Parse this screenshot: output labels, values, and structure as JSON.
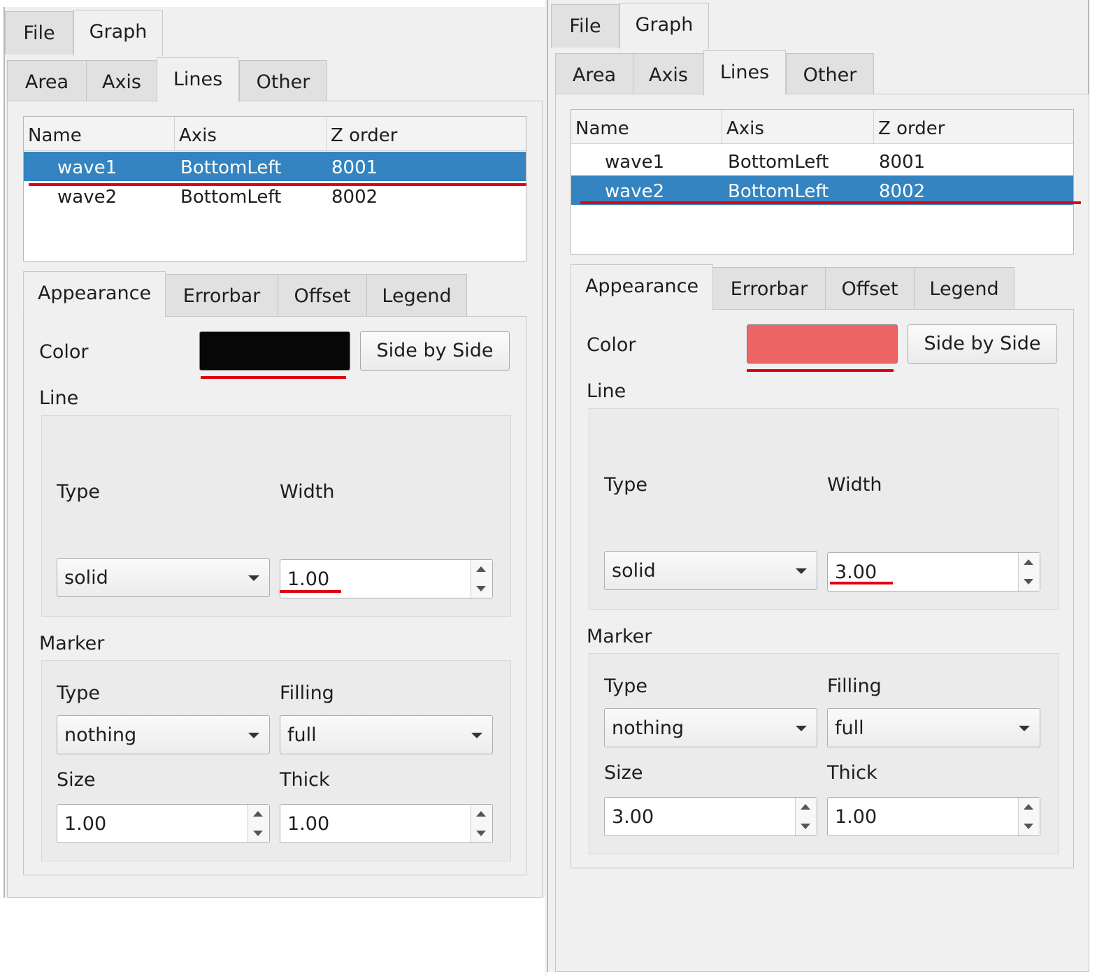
{
  "panels": [
    {
      "main_tabs": [
        "File",
        "Graph"
      ],
      "sub_tabs": [
        "Area",
        "Axis",
        "Lines",
        "Other"
      ],
      "table": {
        "headers": [
          "Name",
          "Axis",
          "Z order"
        ],
        "rows": [
          {
            "name": "wave1",
            "axis": "BottomLeft",
            "z": "8001"
          },
          {
            "name": "wave2",
            "axis": "BottomLeft",
            "z": "8002"
          }
        ],
        "selected_index": 0
      },
      "prop_tabs": [
        "Appearance",
        "Errorbar",
        "Offset",
        "Legend"
      ],
      "color_label": "Color",
      "color_value": "#070707",
      "side_by_side": "Side by Side",
      "line_label": "Line",
      "line_type_label": "Type",
      "line_width_label": "Width",
      "line_type_value": "solid",
      "line_width_value": "1.00",
      "marker_label": "Marker",
      "marker_type_label": "Type",
      "marker_filling_label": "Filling",
      "marker_type_value": "nothing",
      "marker_filling_value": "full",
      "marker_size_label": "Size",
      "marker_thick_label": "Thick",
      "marker_size_value": "1.00",
      "marker_thick_value": "1.00"
    },
    {
      "main_tabs": [
        "File",
        "Graph"
      ],
      "sub_tabs": [
        "Area",
        "Axis",
        "Lines",
        "Other"
      ],
      "table": {
        "headers": [
          "Name",
          "Axis",
          "Z order"
        ],
        "rows": [
          {
            "name": "wave1",
            "axis": "BottomLeft",
            "z": "8001"
          },
          {
            "name": "wave2",
            "axis": "BottomLeft",
            "z": "8002"
          }
        ],
        "selected_index": 1
      },
      "prop_tabs": [
        "Appearance",
        "Errorbar",
        "Offset",
        "Legend"
      ],
      "color_label": "Color",
      "color_value": "#ec6464",
      "side_by_side": "Side by Side",
      "line_label": "Line",
      "line_type_label": "Type",
      "line_width_label": "Width",
      "line_type_value": "solid",
      "line_width_value": "3.00",
      "marker_label": "Marker",
      "marker_type_label": "Type",
      "marker_filling_label": "Filling",
      "marker_type_value": "nothing",
      "marker_filling_value": "full",
      "marker_size_label": "Size",
      "marker_thick_label": "Thick",
      "marker_size_value": "3.00",
      "marker_thick_value": "1.00"
    }
  ],
  "colors": {
    "selection": "#3384c0",
    "highlight_underline": "#e00012"
  }
}
